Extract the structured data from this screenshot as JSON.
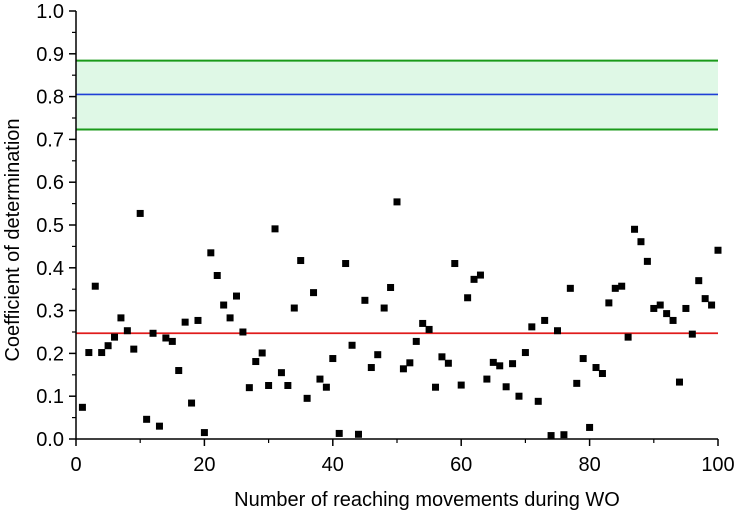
{
  "chart_data": {
    "type": "scatter",
    "title": "",
    "xlabel": "Number of reaching movements during WO",
    "ylabel": "Coefficient of determination",
    "xlim": [
      0,
      100
    ],
    "ylim": [
      0,
      1.0
    ],
    "x_ticks": [
      0,
      20,
      40,
      60,
      80,
      100
    ],
    "x_tick_labels": [
      "0",
      "20",
      "40",
      "60",
      "80",
      "100"
    ],
    "y_ticks": [
      0,
      0.1,
      0.2,
      0.3,
      0.4,
      0.5,
      0.6,
      0.7,
      0.8,
      0.9,
      1.0
    ],
    "y_tick_labels": [
      "0.0",
      "0.1",
      "0.2",
      "0.3",
      "0.4",
      "0.5",
      "0.6",
      "0.7",
      "0.8",
      "0.9",
      "1.0"
    ],
    "grid": false,
    "band": {
      "lower": 0.723,
      "upper": 0.884,
      "center": 0.805,
      "fill_color": "#dff8e6",
      "edge_color": "#1a9a1a",
      "center_color": "#1f3fd6"
    },
    "reference_line": {
      "y": 0.247,
      "color": "#e01b1b"
    },
    "marker_color": "#000000",
    "points": [
      {
        "x": 1,
        "y": 0.074
      },
      {
        "x": 2,
        "y": 0.202
      },
      {
        "x": 3,
        "y": 0.357
      },
      {
        "x": 4,
        "y": 0.202
      },
      {
        "x": 5,
        "y": 0.218
      },
      {
        "x": 6,
        "y": 0.238
      },
      {
        "x": 7,
        "y": 0.283
      },
      {
        "x": 8,
        "y": 0.253
      },
      {
        "x": 9,
        "y": 0.21
      },
      {
        "x": 10,
        "y": 0.527
      },
      {
        "x": 11,
        "y": 0.046
      },
      {
        "x": 12,
        "y": 0.247
      },
      {
        "x": 13,
        "y": 0.03
      },
      {
        "x": 14,
        "y": 0.236
      },
      {
        "x": 15,
        "y": 0.228
      },
      {
        "x": 16,
        "y": 0.16
      },
      {
        "x": 17,
        "y": 0.273
      },
      {
        "x": 18,
        "y": 0.084
      },
      {
        "x": 19,
        "y": 0.277
      },
      {
        "x": 20,
        "y": 0.015
      },
      {
        "x": 21,
        "y": 0.435
      },
      {
        "x": 22,
        "y": 0.382
      },
      {
        "x": 23,
        "y": 0.313
      },
      {
        "x": 24,
        "y": 0.283
      },
      {
        "x": 25,
        "y": 0.334
      },
      {
        "x": 26,
        "y": 0.25
      },
      {
        "x": 27,
        "y": 0.12
      },
      {
        "x": 28,
        "y": 0.181
      },
      {
        "x": 29,
        "y": 0.201
      },
      {
        "x": 30,
        "y": 0.125
      },
      {
        "x": 31,
        "y": 0.491
      },
      {
        "x": 32,
        "y": 0.155
      },
      {
        "x": 33,
        "y": 0.125
      },
      {
        "x": 34,
        "y": 0.306
      },
      {
        "x": 35,
        "y": 0.417
      },
      {
        "x": 36,
        "y": 0.095
      },
      {
        "x": 37,
        "y": 0.342
      },
      {
        "x": 38,
        "y": 0.14
      },
      {
        "x": 39,
        "y": 0.121
      },
      {
        "x": 40,
        "y": 0.188
      },
      {
        "x": 41,
        "y": 0.013
      },
      {
        "x": 42,
        "y": 0.41
      },
      {
        "x": 43,
        "y": 0.219
      },
      {
        "x": 44,
        "y": 0.011
      },
      {
        "x": 45,
        "y": 0.324
      },
      {
        "x": 46,
        "y": 0.167
      },
      {
        "x": 47,
        "y": 0.197
      },
      {
        "x": 48,
        "y": 0.306
      },
      {
        "x": 49,
        "y": 0.354
      },
      {
        "x": 50,
        "y": 0.554
      },
      {
        "x": 51,
        "y": 0.164
      },
      {
        "x": 52,
        "y": 0.178
      },
      {
        "x": 53,
        "y": 0.228
      },
      {
        "x": 54,
        "y": 0.27
      },
      {
        "x": 55,
        "y": 0.256
      },
      {
        "x": 56,
        "y": 0.121
      },
      {
        "x": 57,
        "y": 0.192
      },
      {
        "x": 58,
        "y": 0.177
      },
      {
        "x": 59,
        "y": 0.41
      },
      {
        "x": 60,
        "y": 0.126
      },
      {
        "x": 61,
        "y": 0.33
      },
      {
        "x": 62,
        "y": 0.373
      },
      {
        "x": 63,
        "y": 0.383
      },
      {
        "x": 64,
        "y": 0.14
      },
      {
        "x": 65,
        "y": 0.179
      },
      {
        "x": 66,
        "y": 0.171
      },
      {
        "x": 67,
        "y": 0.122
      },
      {
        "x": 68,
        "y": 0.176
      },
      {
        "x": 69,
        "y": 0.1
      },
      {
        "x": 70,
        "y": 0.202
      },
      {
        "x": 71,
        "y": 0.262
      },
      {
        "x": 72,
        "y": 0.088
      },
      {
        "x": 73,
        "y": 0.277
      },
      {
        "x": 74,
        "y": 0.008
      },
      {
        "x": 75,
        "y": 0.253
      },
      {
        "x": 76,
        "y": 0.01
      },
      {
        "x": 77,
        "y": 0.352
      },
      {
        "x": 78,
        "y": 0.13
      },
      {
        "x": 79,
        "y": 0.188
      },
      {
        "x": 80,
        "y": 0.027
      },
      {
        "x": 81,
        "y": 0.167
      },
      {
        "x": 82,
        "y": 0.153
      },
      {
        "x": 83,
        "y": 0.318
      },
      {
        "x": 84,
        "y": 0.352
      },
      {
        "x": 85,
        "y": 0.357
      },
      {
        "x": 86,
        "y": 0.238
      },
      {
        "x": 87,
        "y": 0.49
      },
      {
        "x": 88,
        "y": 0.461
      },
      {
        "x": 89,
        "y": 0.415
      },
      {
        "x": 90,
        "y": 0.305
      },
      {
        "x": 91,
        "y": 0.313
      },
      {
        "x": 92,
        "y": 0.293
      },
      {
        "x": 93,
        "y": 0.277
      },
      {
        "x": 94,
        "y": 0.133
      },
      {
        "x": 95,
        "y": 0.305
      },
      {
        "x": 96,
        "y": 0.245
      },
      {
        "x": 97,
        "y": 0.37
      },
      {
        "x": 98,
        "y": 0.328
      },
      {
        "x": 99,
        "y": 0.313
      },
      {
        "x": 100,
        "y": 0.441
      }
    ]
  }
}
